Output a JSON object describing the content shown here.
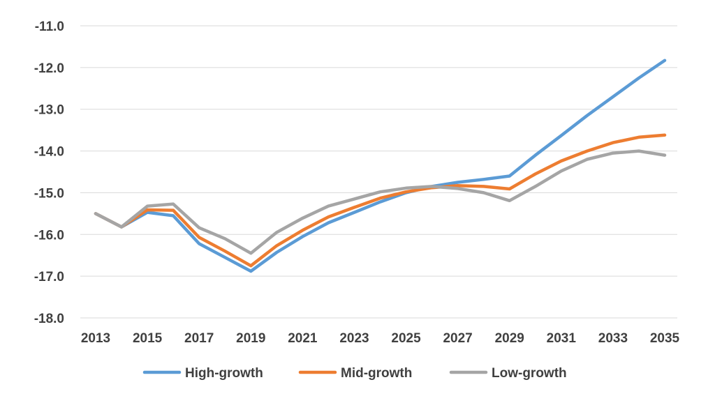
{
  "chart_data": {
    "type": "line",
    "title": "",
    "xlabel": "",
    "ylabel": "",
    "ylim": [
      -18.0,
      -11.0
    ],
    "yticks": [
      "-11.0",
      "-12.0",
      "-13.0",
      "-14.0",
      "-15.0",
      "-16.0",
      "-17.0",
      "-18.0"
    ],
    "ytick_values": [
      -11,
      -12,
      -13,
      -14,
      -15,
      -16,
      -17,
      -18
    ],
    "x": [
      2013,
      2014,
      2015,
      2016,
      2017,
      2018,
      2019,
      2020,
      2021,
      2022,
      2023,
      2024,
      2025,
      2026,
      2027,
      2028,
      2029,
      2030,
      2031,
      2032,
      2033,
      2034,
      2035
    ],
    "xtick_labels": [
      "2013",
      "2015",
      "2017",
      "2019",
      "2021",
      "2023",
      "2025",
      "2027",
      "2029",
      "2031",
      "2033",
      "2035"
    ],
    "xtick_values": [
      2013,
      2015,
      2017,
      2019,
      2021,
      2023,
      2025,
      2027,
      2029,
      2031,
      2033,
      2035
    ],
    "grid": true,
    "legend_position": "bottom",
    "series": [
      {
        "name": "High-growth",
        "color": "#5b9bd5",
        "values": [
          -15.5,
          -15.82,
          -15.47,
          -15.55,
          -16.22,
          -16.55,
          -16.88,
          -16.43,
          -16.05,
          -15.72,
          -15.47,
          -15.22,
          -15.0,
          -14.85,
          -14.75,
          -14.68,
          -14.6,
          -14.1,
          -13.63,
          -13.15,
          -12.7,
          -12.25,
          -11.83
        ]
      },
      {
        "name": "Mid-growth",
        "color": "#ed7d31",
        "values": [
          -15.5,
          -15.82,
          -15.41,
          -15.42,
          -16.07,
          -16.4,
          -16.75,
          -16.27,
          -15.9,
          -15.58,
          -15.35,
          -15.13,
          -14.98,
          -14.88,
          -14.83,
          -14.85,
          -14.91,
          -14.55,
          -14.24,
          -14.0,
          -13.8,
          -13.67,
          -13.62
        ]
      },
      {
        "name": "Low-growth",
        "color": "#a5a5a5",
        "values": [
          -15.5,
          -15.82,
          -15.32,
          -15.27,
          -15.84,
          -16.1,
          -16.45,
          -15.95,
          -15.61,
          -15.32,
          -15.15,
          -14.98,
          -14.89,
          -14.85,
          -14.9,
          -15.0,
          -15.19,
          -14.85,
          -14.48,
          -14.2,
          -14.05,
          -14.0,
          -14.1
        ]
      }
    ]
  }
}
